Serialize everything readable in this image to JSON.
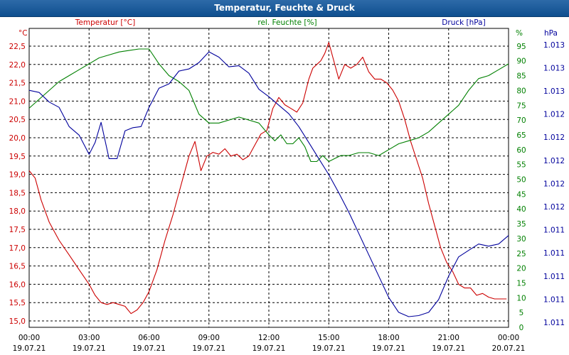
{
  "window": {
    "title": "Temperatur, Feuchte & Druck"
  },
  "colors": {
    "temperature": "#cc0000",
    "humidity": "#008000",
    "pressure": "#00009c",
    "grid": "#000000",
    "frame": "#000000"
  },
  "chart_data": {
    "type": "line",
    "title": "Temperatur, Feuchte & Druck",
    "x_ticks": [
      {
        "time": "00:00",
        "date": "19.07.21"
      },
      {
        "time": "03:00",
        "date": "19.07.21"
      },
      {
        "time": "06:00",
        "date": "19.07.21"
      },
      {
        "time": "09:00",
        "date": "19.07.21"
      },
      {
        "time": "12:00",
        "date": "19.07.21"
      },
      {
        "time": "15:00",
        "date": "19.07.21"
      },
      {
        "time": "18:00",
        "date": "19.07.21"
      },
      {
        "time": "21:00",
        "date": "19.07.21"
      },
      {
        "time": "00:00",
        "date": "20.07.21"
      }
    ],
    "xlim": [
      0,
      24
    ],
    "axes": {
      "temperature": {
        "label": "Temperatur [°C]",
        "unit": "°C",
        "ylim": [
          15,
          23
        ],
        "ticks": [
          "15,0",
          "15,5",
          "16,0",
          "16,5",
          "17,0",
          "17,5",
          "18,0",
          "18,5",
          "19,0",
          "19,5",
          "20,0",
          "20,5",
          "21,0",
          "21,5",
          "22,0",
          "22,5"
        ]
      },
      "humidity": {
        "label": "rel. Feuchte [%]",
        "unit": "%",
        "ylim": [
          0,
          100
        ],
        "ticks": [
          "0",
          "5",
          "10",
          "15",
          "20",
          "25",
          "30",
          "35",
          "40",
          "45",
          "50",
          "55",
          "60",
          "65",
          "70",
          "75",
          "80",
          "85",
          "90",
          "95"
        ]
      },
      "pressure": {
        "label": "Druck [hPa]",
        "unit": "hPa",
        "ticks": [
          "1.011",
          "1.011",
          "1.011",
          "1.011",
          "1.011",
          "1.012",
          "1.012",
          "1.012",
          "1.012",
          "1.012",
          "1.013",
          "1.013",
          "1.013"
        ]
      }
    },
    "series": [
      {
        "name": "Temperatur [°C]",
        "axis": "temperature",
        "x": [
          0,
          0.3,
          0.6,
          1,
          1.5,
          2,
          2.5,
          3,
          3.3,
          3.6,
          3.9,
          4.2,
          4.5,
          4.8,
          5.1,
          5.4,
          5.7,
          6,
          6.4,
          6.8,
          7.2,
          7.6,
          8,
          8.3,
          8.6,
          8.9,
          9.2,
          9.5,
          9.8,
          10.1,
          10.4,
          10.7,
          11,
          11.3,
          11.6,
          11.9,
          12.2,
          12.5,
          12.8,
          13.1,
          13.4,
          13.7,
          14,
          14.2,
          14.4,
          14.6,
          14.8,
          15,
          15.2,
          15.5,
          15.8,
          16.1,
          16.4,
          16.7,
          17,
          17.3,
          17.6,
          17.9,
          18.2,
          18.5,
          18.8,
          19.1,
          19.4,
          19.7,
          20,
          20.3,
          20.6,
          20.9,
          21.2,
          21.5,
          21.8,
          22.1,
          22.4,
          22.7,
          23,
          23.3,
          23.6,
          23.9
        ],
        "values": [
          19.1,
          18.9,
          18.3,
          17.7,
          17.2,
          16.8,
          16.4,
          16.0,
          15.7,
          15.5,
          15.45,
          15.5,
          15.45,
          15.4,
          15.2,
          15.3,
          15.5,
          15.8,
          16.4,
          17.2,
          17.9,
          18.7,
          19.5,
          19.9,
          19.1,
          19.5,
          19.6,
          19.55,
          19.7,
          19.5,
          19.55,
          19.4,
          19.5,
          19.8,
          20.1,
          20.2,
          20.8,
          21.1,
          20.9,
          20.8,
          20.7,
          20.95,
          21.6,
          21.9,
          22.0,
          22.1,
          22.3,
          22.6,
          22.2,
          21.6,
          22.0,
          21.9,
          22.0,
          22.2,
          21.8,
          21.6,
          21.6,
          21.5,
          21.3,
          21.0,
          20.5,
          19.9,
          19.4,
          18.9,
          18.2,
          17.6,
          17.0,
          16.6,
          16.35,
          16.0,
          15.9,
          15.9,
          15.7,
          15.75,
          15.65,
          15.6,
          15.6,
          15.6
        ]
      },
      {
        "name": "rel. Feuchte [%]",
        "axis": "humidity",
        "x": [
          0,
          0.5,
          1,
          1.5,
          2,
          2.5,
          3,
          3.5,
          4,
          4.5,
          5,
          5.5,
          6,
          6.5,
          7,
          7.5,
          8,
          8.5,
          9,
          9.5,
          10,
          10.5,
          11,
          11.5,
          12,
          12.3,
          12.6,
          12.9,
          13.2,
          13.5,
          13.8,
          14.1,
          14.4,
          14.7,
          15,
          15.3,
          15.6,
          16,
          16.5,
          17,
          17.5,
          18,
          18.5,
          19,
          19.5,
          20,
          20.5,
          21,
          21.5,
          22,
          22.5,
          23,
          23.5,
          24
        ],
        "values": [
          74,
          77,
          80,
          83,
          85,
          87,
          89,
          91,
          92,
          93,
          93.5,
          94,
          94,
          89,
          85,
          83,
          80,
          72,
          69,
          69,
          70,
          71,
          70,
          69,
          65,
          63,
          65,
          62,
          62,
          64,
          61,
          56,
          56,
          58,
          56,
          57,
          58,
          58,
          59,
          59,
          58,
          60,
          62,
          63,
          64,
          66,
          69,
          72,
          75,
          80,
          84,
          85,
          87,
          89
        ]
      },
      {
        "name": "Druck [hPa]",
        "axis": "pressure",
        "xy": [
          [
            0,
            1.01274
          ],
          [
            0.5,
            1.01272
          ],
          [
            1,
            1.01263
          ],
          [
            1.5,
            1.01258
          ],
          [
            2,
            1.0124
          ],
          [
            2.5,
            1.01232
          ],
          [
            3,
            1.01214
          ],
          [
            3.3,
            1.01225
          ],
          [
            3.6,
            1.01244
          ],
          [
            4,
            1.0121
          ],
          [
            4.4,
            1.0121
          ],
          [
            4.8,
            1.01236
          ],
          [
            5.2,
            1.01239
          ],
          [
            5.6,
            1.0124
          ],
          [
            6,
            1.01258
          ],
          [
            6.5,
            1.01276
          ],
          [
            7,
            1.0128
          ],
          [
            7.5,
            1.01292
          ],
          [
            8,
            1.01294
          ],
          [
            8.5,
            1.013
          ],
          [
            9,
            1.0131
          ],
          [
            9.5,
            1.01305
          ],
          [
            10,
            1.01296
          ],
          [
            10.5,
            1.01297
          ],
          [
            11,
            1.0129
          ],
          [
            11.5,
            1.01275
          ],
          [
            12,
            1.01268
          ],
          [
            12.5,
            1.0126
          ],
          [
            13,
            1.01252
          ],
          [
            13.5,
            1.0124
          ],
          [
            14,
            1.01225
          ],
          [
            14.5,
            1.0121
          ],
          [
            15,
            1.01195
          ],
          [
            15.5,
            1.01178
          ],
          [
            16,
            1.0116
          ],
          [
            16.5,
            1.0114
          ],
          [
            17,
            1.0112
          ],
          [
            17.5,
            1.011
          ],
          [
            18,
            1.0108
          ],
          [
            18.5,
            1.01066
          ],
          [
            19,
            1.01062
          ],
          [
            19.5,
            1.01063
          ],
          [
            20,
            1.01066
          ],
          [
            20.5,
            1.01078
          ],
          [
            21,
            1.011
          ],
          [
            21.5,
            1.01118
          ],
          [
            22,
            1.01124
          ],
          [
            22.5,
            1.0113
          ],
          [
            23,
            1.01128
          ],
          [
            23.5,
            1.0113
          ],
          [
            24,
            1.01138
          ]
        ]
      }
    ]
  }
}
